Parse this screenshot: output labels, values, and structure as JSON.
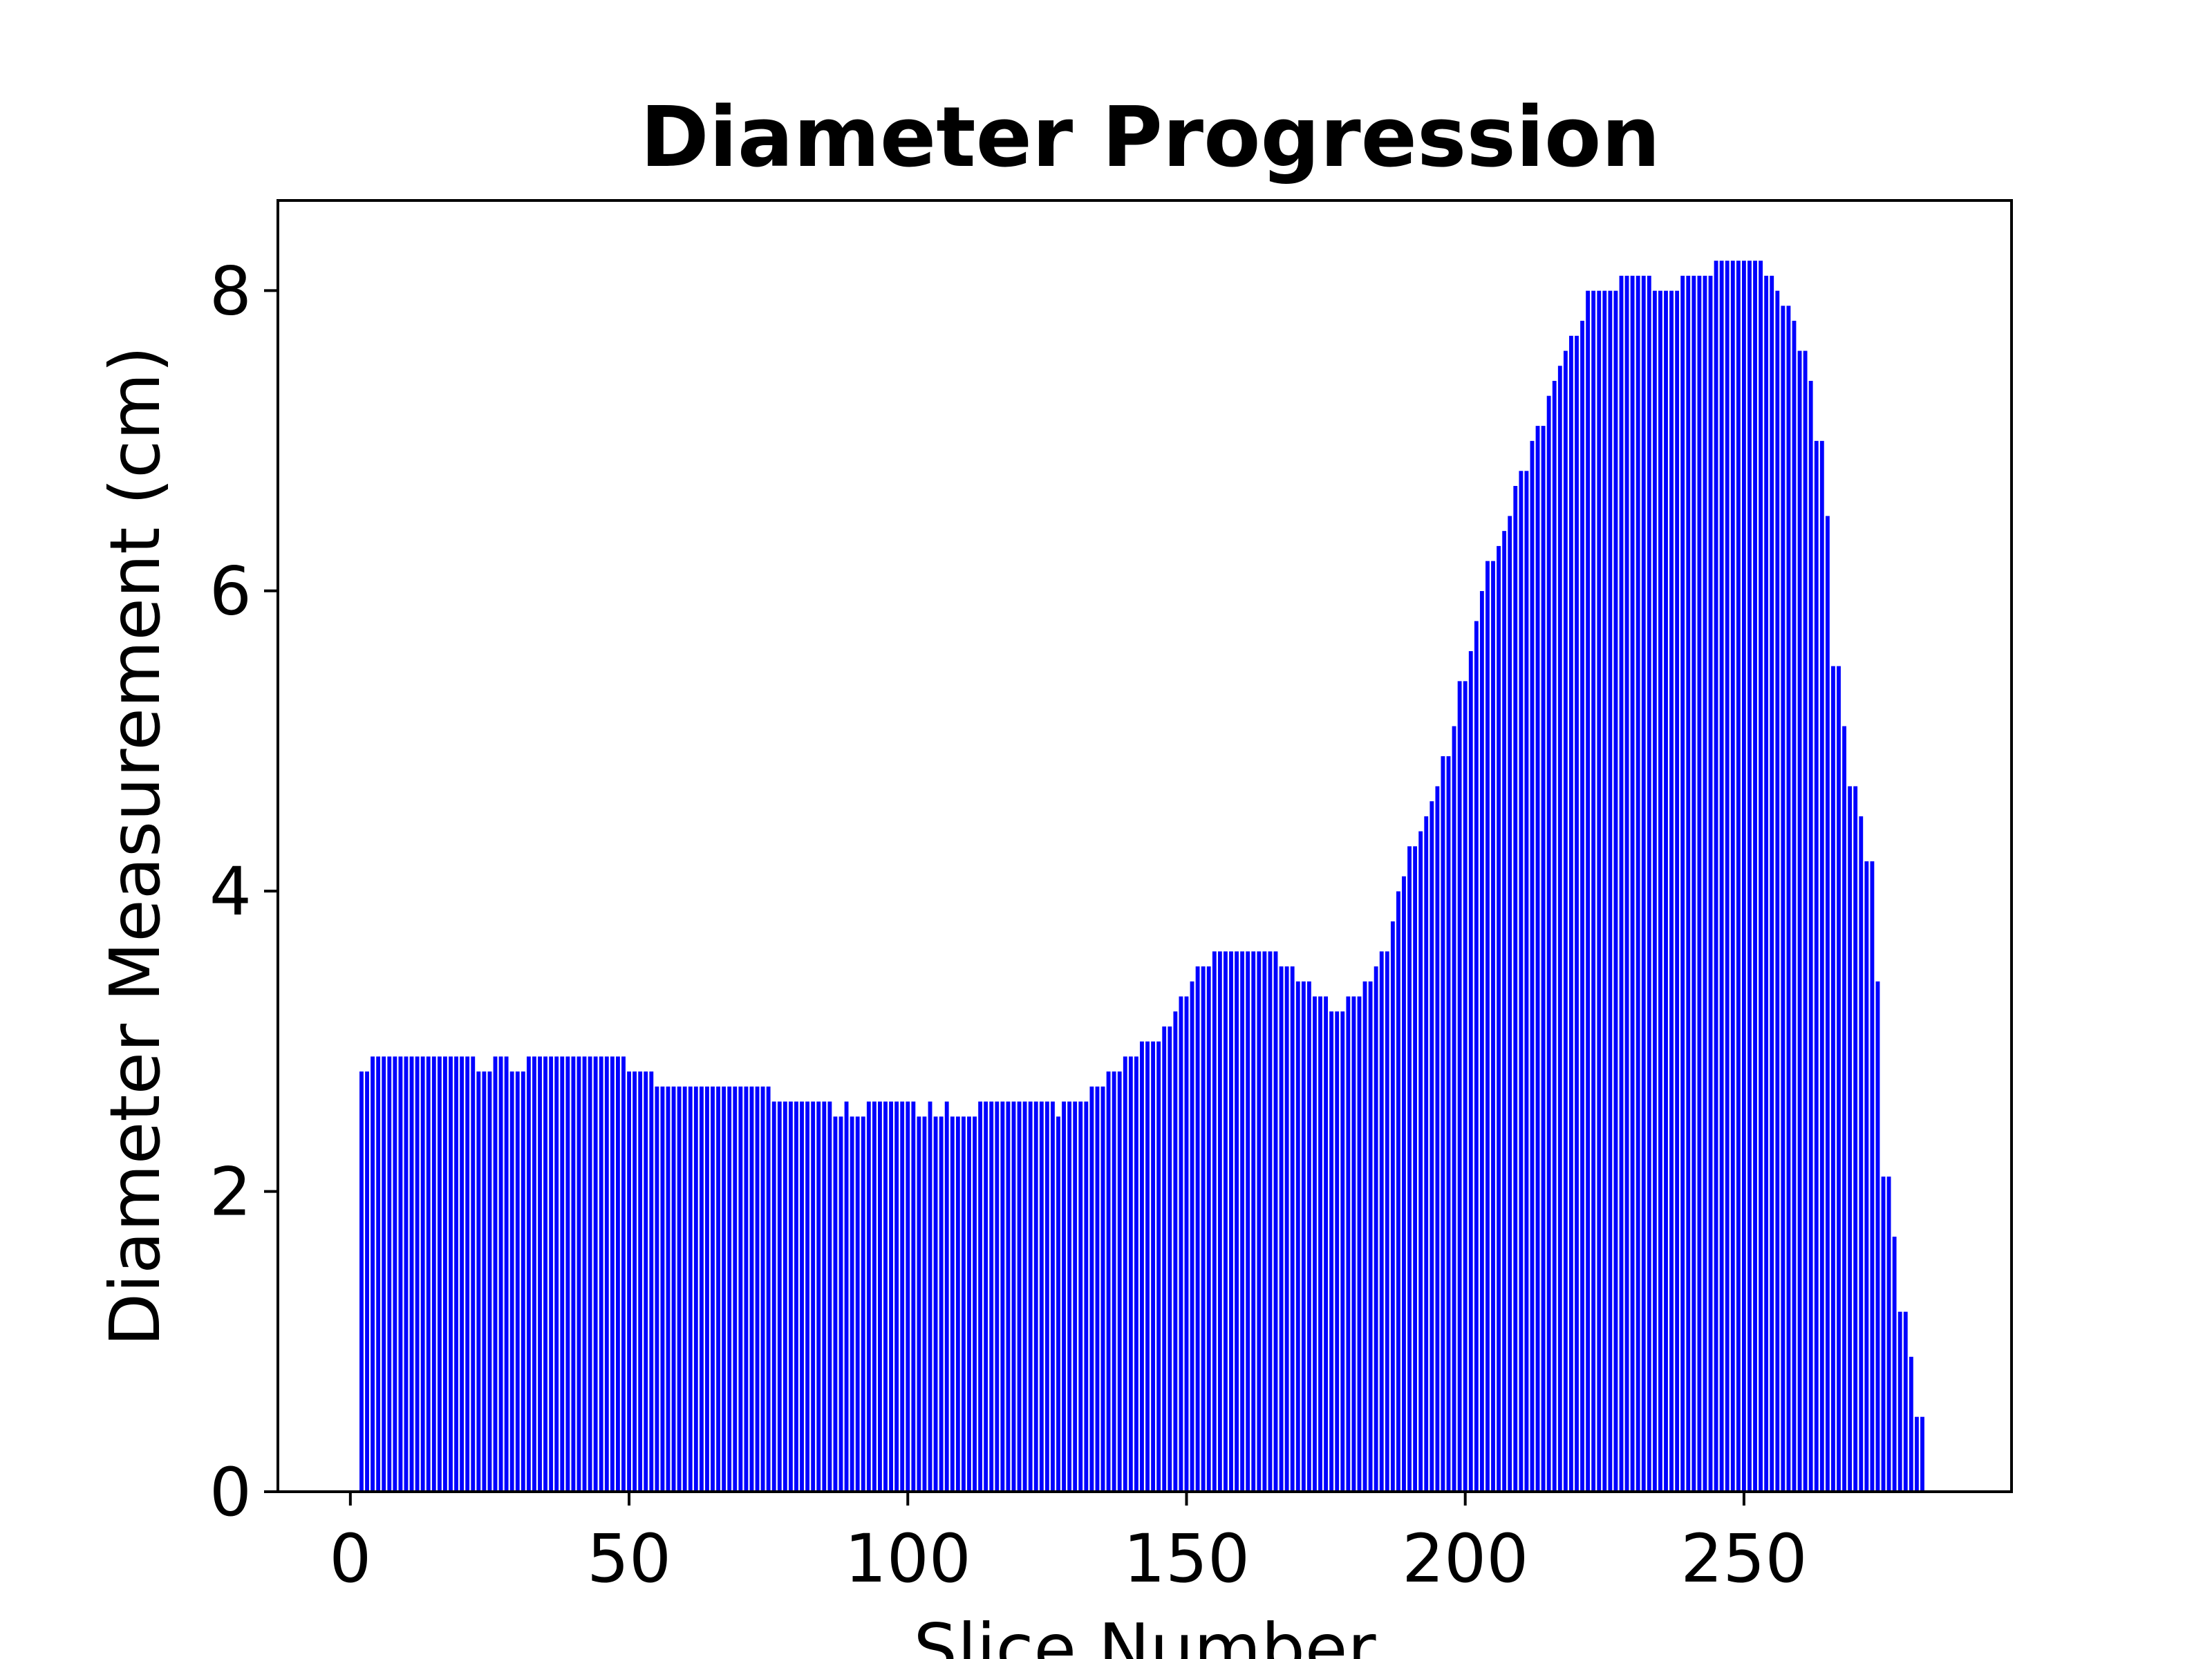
{
  "chart_data": {
    "type": "bar",
    "title": "Diameter Progression",
    "xlabel": "Slice Number",
    "ylabel": "Diameter Measurement (cm)",
    "xlim": [
      -13,
      298
    ],
    "ylim": [
      0,
      8.6
    ],
    "xticks": [
      0,
      50,
      100,
      150,
      200,
      250
    ],
    "xtick_labels": [
      "0",
      "50",
      "100",
      "150",
      "200",
      "250"
    ],
    "yticks": [
      0,
      2,
      4,
      6,
      8
    ],
    "ytick_labels": [
      "0",
      "2",
      "4",
      "6",
      "8"
    ],
    "grid": false,
    "legend": "none",
    "bar_color": "#0000ff",
    "bar_edge_color": "#ffffff",
    "x_start": 2,
    "values": [
      2.8,
      2.8,
      2.9,
      2.9,
      2.9,
      2.9,
      2.9,
      2.9,
      2.9,
      2.9,
      2.9,
      2.9,
      2.9,
      2.9,
      2.9,
      2.9,
      2.9,
      2.9,
      2.9,
      2.9,
      2.9,
      2.8,
      2.8,
      2.8,
      2.9,
      2.9,
      2.9,
      2.8,
      2.8,
      2.8,
      2.9,
      2.9,
      2.9,
      2.9,
      2.9,
      2.9,
      2.9,
      2.9,
      2.9,
      2.9,
      2.9,
      2.9,
      2.9,
      2.9,
      2.9,
      2.9,
      2.9,
      2.9,
      2.8,
      2.8,
      2.8,
      2.8,
      2.8,
      2.7,
      2.7,
      2.7,
      2.7,
      2.7,
      2.7,
      2.7,
      2.7,
      2.7,
      2.7,
      2.7,
      2.7,
      2.7,
      2.7,
      2.7,
      2.7,
      2.7,
      2.7,
      2.7,
      2.7,
      2.7,
      2.6,
      2.6,
      2.6,
      2.6,
      2.6,
      2.6,
      2.6,
      2.6,
      2.6,
      2.6,
      2.6,
      2.5,
      2.5,
      2.6,
      2.5,
      2.5,
      2.5,
      2.6,
      2.6,
      2.6,
      2.6,
      2.6,
      2.6,
      2.6,
      2.6,
      2.6,
      2.5,
      2.5,
      2.6,
      2.5,
      2.5,
      2.6,
      2.5,
      2.5,
      2.5,
      2.5,
      2.5,
      2.6,
      2.6,
      2.6,
      2.6,
      2.6,
      2.6,
      2.6,
      2.6,
      2.6,
      2.6,
      2.6,
      2.6,
      2.6,
      2.6,
      2.5,
      2.6,
      2.6,
      2.6,
      2.6,
      2.6,
      2.7,
      2.7,
      2.7,
      2.8,
      2.8,
      2.8,
      2.9,
      2.9,
      2.9,
      3.0,
      3.0,
      3.0,
      3.0,
      3.1,
      3.1,
      3.2,
      3.3,
      3.3,
      3.4,
      3.5,
      3.5,
      3.5,
      3.6,
      3.6,
      3.6,
      3.6,
      3.6,
      3.6,
      3.6,
      3.6,
      3.6,
      3.6,
      3.6,
      3.6,
      3.5,
      3.5,
      3.5,
      3.4,
      3.4,
      3.4,
      3.3,
      3.3,
      3.3,
      3.2,
      3.2,
      3.2,
      3.3,
      3.3,
      3.3,
      3.4,
      3.4,
      3.5,
      3.6,
      3.6,
      3.8,
      4.0,
      4.1,
      4.3,
      4.3,
      4.4,
      4.5,
      4.6,
      4.7,
      4.9,
      4.9,
      5.1,
      5.4,
      5.4,
      5.6,
      5.8,
      6.0,
      6.2,
      6.2,
      6.3,
      6.4,
      6.5,
      6.7,
      6.8,
      6.8,
      7.0,
      7.1,
      7.1,
      7.3,
      7.4,
      7.5,
      7.6,
      7.7,
      7.7,
      7.8,
      8.0,
      8.0,
      8.0,
      8.0,
      8.0,
      8.0,
      8.1,
      8.1,
      8.1,
      8.1,
      8.1,
      8.1,
      8.0,
      8.0,
      8.0,
      8.0,
      8.0,
      8.1,
      8.1,
      8.1,
      8.1,
      8.1,
      8.1,
      8.2,
      8.2,
      8.2,
      8.2,
      8.2,
      8.2,
      8.2,
      8.2,
      8.2,
      8.1,
      8.1,
      8.0,
      7.9,
      7.9,
      7.8,
      7.6,
      7.6,
      7.4,
      7.0,
      7.0,
      6.5,
      5.5,
      5.5,
      5.1,
      4.7,
      4.7,
      4.5,
      4.2,
      4.2,
      3.4,
      2.1,
      2.1,
      1.7,
      1.2,
      1.2,
      0.9,
      0.5,
      0.5
    ]
  }
}
